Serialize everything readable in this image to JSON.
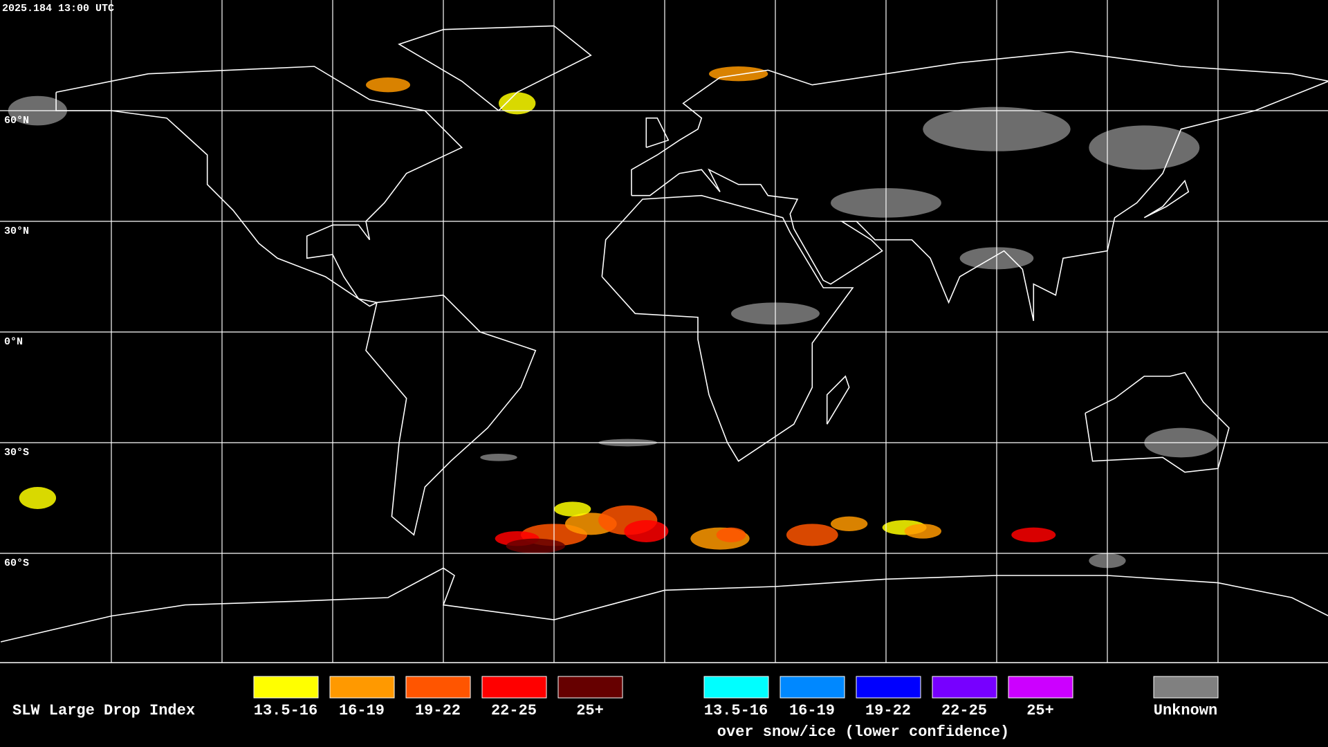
{
  "header": {
    "timestamp": "2025.184 13:00 UTC"
  },
  "map": {
    "latitude_labels": [
      "60°N",
      "30°N",
      "0°N",
      "30°S",
      "60°S"
    ]
  },
  "legend": {
    "title": "SLW Large Drop Index",
    "liquid": [
      {
        "label": "13.5-16",
        "color": "#ffff00"
      },
      {
        "label": "16-19",
        "color": "#ff9900"
      },
      {
        "label": "19-22",
        "color": "#ff5500"
      },
      {
        "label": "22-25",
        "color": "#ff0000"
      },
      {
        "label": "25+",
        "color": "#660000"
      }
    ],
    "snow_ice": [
      {
        "label": "13.5-16",
        "color": "#00ffff"
      },
      {
        "label": "16-19",
        "color": "#0088ff"
      },
      {
        "label": "19-22",
        "color": "#0000ff"
      },
      {
        "label": "22-25",
        "color": "#7700ff"
      },
      {
        "label": "25+",
        "color": "#cc00ff"
      }
    ],
    "snow_ice_caption": "over snow/ice (lower confidence)",
    "unknown": {
      "label": "Unknown",
      "color": "#808080"
    }
  }
}
